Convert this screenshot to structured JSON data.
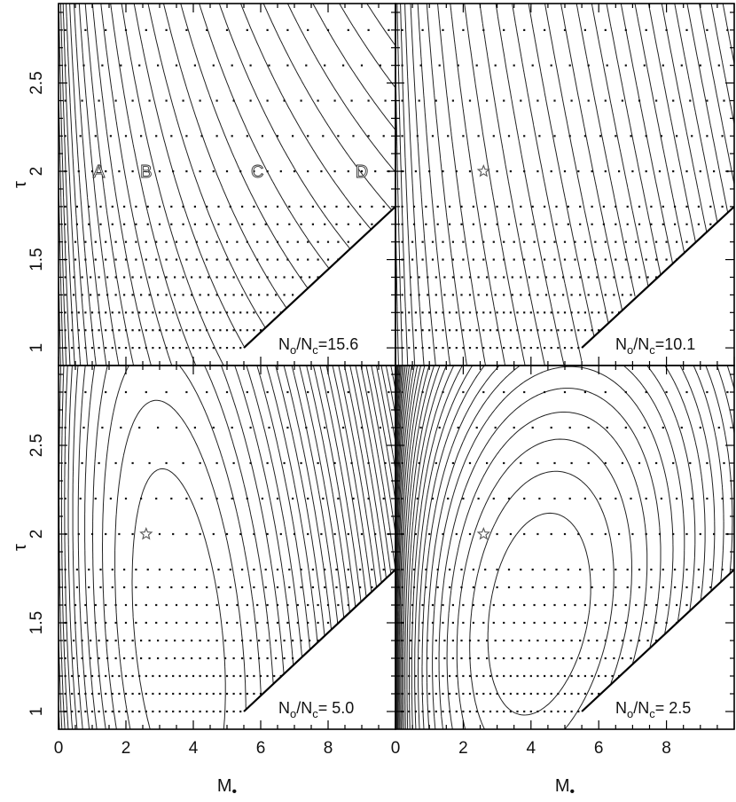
{
  "chart_data": {
    "type": "contour",
    "layout": "2x2 shared axes",
    "xlabel": "M",
    "xlabel_subscript": "•",
    "ylabel": "τ",
    "xlim": [
      0,
      10
    ],
    "ylim": [
      0.9,
      2.95
    ],
    "x_ticks": [
      0,
      2,
      4,
      6,
      8
    ],
    "y_ticks": [
      1,
      1.5,
      2,
      2.5
    ],
    "y_tick_labels": [
      "1",
      "1.5",
      "2",
      "2.5"
    ],
    "grid": false,
    "boundary_line": {
      "from": [
        5.5,
        1.0
      ],
      "to": [
        10.0,
        1.8
      ]
    },
    "grid_points": {
      "tau_rows": [
        1.0,
        1.1,
        1.2,
        1.3,
        1.4,
        1.5,
        1.6,
        1.7,
        1.8,
        2.0,
        2.2,
        2.4,
        2.6,
        2.8
      ],
      "x_spacing": [
        0.2,
        0.2,
        0.2,
        0.25,
        0.25,
        0.3,
        0.3,
        0.35,
        0.35,
        0.4,
        0.45,
        0.5,
        0.55,
        0.6
      ],
      "max_x": 10.0
    },
    "panels": [
      {
        "label_num": "N",
        "label_num_sub": "o",
        "label_den": "N",
        "label_den_sub": "c",
        "ratio_text": "=15.6",
        "point_labels": [
          {
            "text": "A",
            "x": 1.2,
            "y": 2.0
          },
          {
            "text": "B",
            "x": 2.6,
            "y": 2.0
          },
          {
            "text": "C",
            "x": 5.9,
            "y": 2.0
          },
          {
            "text": "D",
            "x": 9.0,
            "y": 2.0
          }
        ],
        "star": null
      },
      {
        "label_num": "N",
        "label_num_sub": "o",
        "label_den": "N",
        "label_den_sub": "c",
        "ratio_text": "=10.1",
        "point_labels": [],
        "star": {
          "x": 2.6,
          "y": 2.0
        }
      },
      {
        "label_num": "N",
        "label_num_sub": "o",
        "label_den": "N",
        "label_den_sub": "c",
        "ratio_text": "= 5.0",
        "point_labels": [],
        "star": {
          "x": 2.6,
          "y": 2.0
        }
      },
      {
        "label_num": "N",
        "label_num_sub": "o",
        "label_den": "N",
        "label_den_sub": "c",
        "ratio_text": "= 2.5",
        "point_labels": [],
        "star": {
          "x": 2.6,
          "y": 2.0
        }
      }
    ]
  }
}
